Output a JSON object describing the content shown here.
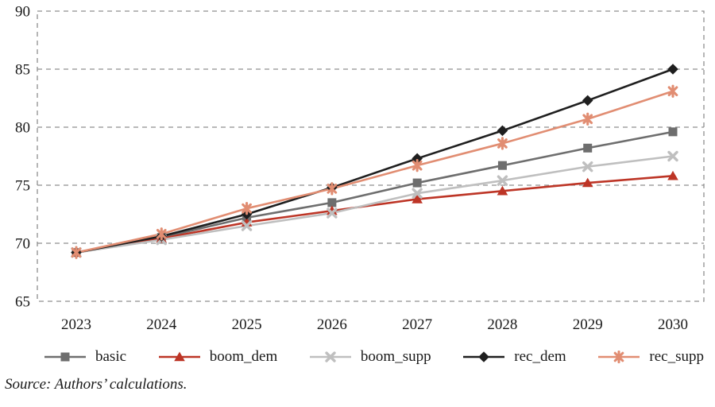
{
  "figure": {
    "source_note": "Source: Authors’ calculations."
  },
  "colors": {
    "background": "#ffffff",
    "grid": "#8f8f8f",
    "text": "#1a1a1a"
  },
  "chart_data": {
    "type": "line",
    "title": "",
    "xlabel": "",
    "ylabel": "",
    "x": [
      2023,
      2024,
      2025,
      2026,
      2027,
      2028,
      2029,
      2030
    ],
    "ylim": [
      65,
      90
    ],
    "yticks": [
      65,
      70,
      75,
      80,
      85,
      90
    ],
    "grid": "horizontal-dashed-with-dashed-border",
    "legend_position": "bottom",
    "series": [
      {
        "name": "basic",
        "color": "#6e6e6e",
        "marker": "square",
        "values": [
          69.2,
          70.5,
          72.2,
          73.5,
          75.2,
          76.7,
          78.2,
          79.6
        ]
      },
      {
        "name": "boom_dem",
        "color": "#bd3526",
        "marker": "triangle",
        "values": [
          69.2,
          70.4,
          71.8,
          72.8,
          73.8,
          74.5,
          75.2,
          75.8
        ]
      },
      {
        "name": "boom_supp",
        "color": "#bfbfbf",
        "marker": "x",
        "values": [
          69.2,
          70.3,
          71.5,
          72.6,
          74.3,
          75.4,
          76.6,
          77.5
        ]
      },
      {
        "name": "rec_dem",
        "color": "#1f1f1f",
        "marker": "diamond",
        "values": [
          69.2,
          70.6,
          72.5,
          74.8,
          77.3,
          79.7,
          82.3,
          85.0
        ]
      },
      {
        "name": "rec_supp",
        "color": "#e18d72",
        "marker": "star",
        "values": [
          69.2,
          70.8,
          73.0,
          74.7,
          76.7,
          78.6,
          80.7,
          83.1
        ]
      }
    ]
  }
}
